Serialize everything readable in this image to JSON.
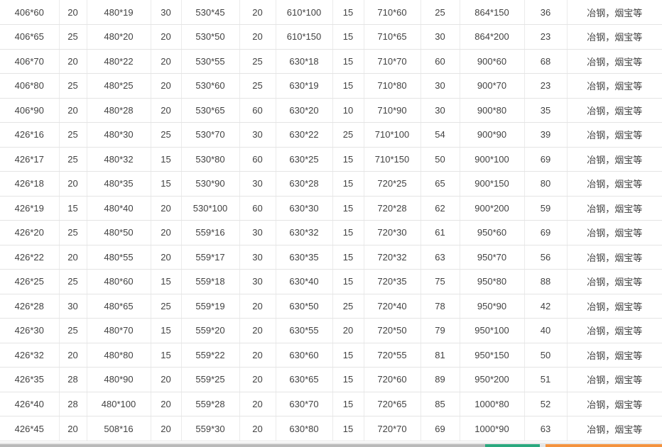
{
  "page": {
    "description": "Steel pipe size and stock quantity table",
    "remark_text": "冶钢，烟宝等"
  },
  "footer_bar": {
    "gray_color": "#b9b9b9",
    "green_color": "#2aa87e",
    "gap_color": "#e3e3e3",
    "orange_color": "#f3923e"
  },
  "table": {
    "column_kinds": [
      "spec",
      "qty",
      "spec",
      "qty",
      "spec",
      "qty",
      "spec",
      "qty",
      "spec",
      "qty",
      "spec",
      "qty",
      "mills"
    ],
    "rows": [
      [
        "406*60",
        "20",
        "480*19",
        "30",
        "530*45",
        "20",
        "610*100",
        "15",
        "710*60",
        "25",
        "864*150",
        "36",
        "冶钢，烟宝等"
      ],
      [
        "406*65",
        "25",
        "480*20",
        "20",
        "530*50",
        "20",
        "610*150",
        "15",
        "710*65",
        "30",
        "864*200",
        "23",
        "冶钢，烟宝等"
      ],
      [
        "406*70",
        "20",
        "480*22",
        "20",
        "530*55",
        "25",
        "630*18",
        "15",
        "710*70",
        "60",
        "900*60",
        "68",
        "冶钢，烟宝等"
      ],
      [
        "406*80",
        "25",
        "480*25",
        "20",
        "530*60",
        "25",
        "630*19",
        "15",
        "710*80",
        "30",
        "900*70",
        "23",
        "冶钢，烟宝等"
      ],
      [
        "406*90",
        "20",
        "480*28",
        "20",
        "530*65",
        "60",
        "630*20",
        "10",
        "710*90",
        "30",
        "900*80",
        "35",
        "冶钢，烟宝等"
      ],
      [
        "426*16",
        "25",
        "480*30",
        "25",
        "530*70",
        "30",
        "630*22",
        "25",
        "710*100",
        "54",
        "900*90",
        "39",
        "冶钢，烟宝等"
      ],
      [
        "426*17",
        "25",
        "480*32",
        "15",
        "530*80",
        "60",
        "630*25",
        "15",
        "710*150",
        "50",
        "900*100",
        "69",
        "冶钢，烟宝等"
      ],
      [
        "426*18",
        "20",
        "480*35",
        "15",
        "530*90",
        "30",
        "630*28",
        "15",
        "720*25",
        "65",
        "900*150",
        "80",
        "冶钢，烟宝等"
      ],
      [
        "426*19",
        "15",
        "480*40",
        "20",
        "530*100",
        "60",
        "630*30",
        "15",
        "720*28",
        "62",
        "900*200",
        "59",
        "冶钢，烟宝等"
      ],
      [
        "426*20",
        "25",
        "480*50",
        "20",
        "559*16",
        "30",
        "630*32",
        "15",
        "720*30",
        "61",
        "950*60",
        "69",
        "冶钢，烟宝等"
      ],
      [
        "426*22",
        "20",
        "480*55",
        "20",
        "559*17",
        "30",
        "630*35",
        "15",
        "720*32",
        "63",
        "950*70",
        "56",
        "冶钢，烟宝等"
      ],
      [
        "426*25",
        "25",
        "480*60",
        "15",
        "559*18",
        "30",
        "630*40",
        "15",
        "720*35",
        "75",
        "950*80",
        "88",
        "冶钢，烟宝等"
      ],
      [
        "426*28",
        "30",
        "480*65",
        "25",
        "559*19",
        "20",
        "630*50",
        "25",
        "720*40",
        "78",
        "950*90",
        "42",
        "冶钢，烟宝等"
      ],
      [
        "426*30",
        "25",
        "480*70",
        "15",
        "559*20",
        "20",
        "630*55",
        "20",
        "720*50",
        "79",
        "950*100",
        "40",
        "冶钢，烟宝等"
      ],
      [
        "426*32",
        "20",
        "480*80",
        "15",
        "559*22",
        "20",
        "630*60",
        "15",
        "720*55",
        "81",
        "950*150",
        "50",
        "冶钢，烟宝等"
      ],
      [
        "426*35",
        "28",
        "480*90",
        "20",
        "559*25",
        "20",
        "630*65",
        "15",
        "720*60",
        "89",
        "950*200",
        "51",
        "冶钢，烟宝等"
      ],
      [
        "426*40",
        "28",
        "480*100",
        "20",
        "559*28",
        "20",
        "630*70",
        "15",
        "720*65",
        "85",
        "1000*80",
        "52",
        "冶钢，烟宝等"
      ],
      [
        "426*45",
        "20",
        "508*16",
        "20",
        "559*30",
        "20",
        "630*80",
        "15",
        "720*70",
        "69",
        "1000*90",
        "63",
        "冶钢，烟宝等"
      ]
    ]
  }
}
